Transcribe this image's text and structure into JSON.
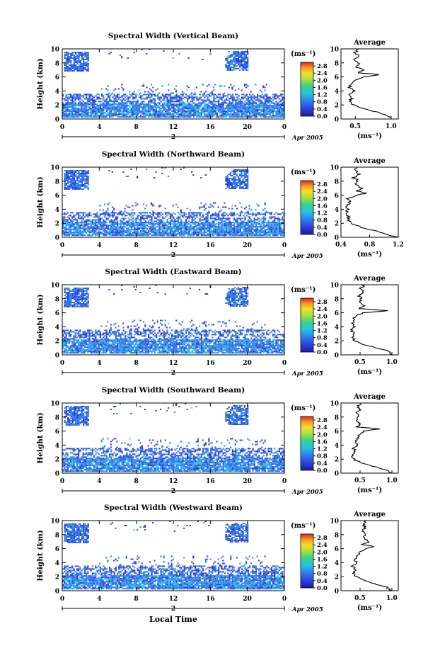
{
  "figure": {
    "xlabel": "Local Time",
    "date_label": "Apr 2005",
    "day_label": "2",
    "ylabel": "Height (km)",
    "cbar_unit": "(ms⁻¹)",
    "avg_title": "Average",
    "avg_unit": "(ms⁻¹)"
  },
  "chart_data": [
    {
      "type": "heatmap",
      "title": "Spectral Width (Vertical Beam)",
      "x_ticks": [
        "0",
        "4",
        "8",
        "12",
        "16",
        "20",
        "0"
      ],
      "y_ticks": [
        "0",
        "2",
        "4",
        "6",
        "8",
        "10"
      ],
      "xlim": [
        0,
        24
      ],
      "ylim": [
        0,
        10
      ],
      "cbar_ticks": [
        "0.0",
        "0.4",
        "0.8",
        "1.2",
        "1.6",
        "2.0",
        "2.4",
        "2.8"
      ],
      "cbar_range": [
        0,
        3.0
      ],
      "average_profile": {
        "x_ticks": [
          "0.5",
          "1.0"
        ],
        "xlim": [
          0.3,
          1.1
        ],
        "height": [
          0,
          0.5,
          1,
          1.5,
          2,
          2.5,
          3,
          3.5,
          4,
          4.5,
          5,
          5.5,
          6,
          6.3,
          6.6,
          7,
          7.5,
          8,
          8.5,
          9,
          9.5,
          10
        ],
        "values": [
          1.0,
          0.95,
          0.8,
          0.6,
          0.48,
          0.42,
          0.45,
          0.4,
          0.48,
          0.42,
          0.45,
          0.5,
          0.6,
          0.85,
          0.55,
          0.6,
          0.5,
          0.55,
          0.5,
          0.55,
          0.5,
          0.55
        ]
      }
    },
    {
      "type": "heatmap",
      "title": "Spectral Width (Northward Beam)",
      "x_ticks": [
        "0",
        "4",
        "8",
        "12",
        "16",
        "20",
        "0"
      ],
      "y_ticks": [
        "0",
        "2",
        "4",
        "6",
        "8",
        "10"
      ],
      "xlim": [
        0,
        24
      ],
      "ylim": [
        0,
        10
      ],
      "cbar_ticks": [
        "0.0",
        "0.4",
        "0.8",
        "1.2",
        "1.6",
        "2.0",
        "2.4",
        "2.8"
      ],
      "cbar_range": [
        0,
        3.0
      ],
      "average_profile": {
        "x_ticks": [
          "0.4",
          "0.8",
          "1.2"
        ],
        "xlim": [
          0.4,
          1.2
        ],
        "height": [
          0,
          0.5,
          1,
          1.5,
          2,
          2.5,
          3,
          3.5,
          4,
          4.5,
          5,
          5.5,
          6,
          6.3,
          6.6,
          7,
          7.5,
          8,
          8.5,
          9,
          9.5,
          10
        ],
        "values": [
          1.2,
          1.0,
          0.85,
          0.65,
          0.55,
          0.5,
          0.5,
          0.47,
          0.5,
          0.48,
          0.52,
          0.5,
          0.6,
          0.75,
          0.62,
          0.68,
          0.6,
          0.65,
          0.58,
          0.65,
          0.6,
          0.62
        ]
      }
    },
    {
      "type": "heatmap",
      "title": "Spectral Width (Eastward Beam)",
      "x_ticks": [
        "0",
        "4",
        "8",
        "12",
        "16",
        "20",
        "0"
      ],
      "y_ticks": [
        "0",
        "2",
        "4",
        "6",
        "8",
        "10"
      ],
      "xlim": [
        0,
        24
      ],
      "ylim": [
        0,
        10
      ],
      "cbar_ticks": [
        "0.0",
        "0.4",
        "0.8",
        "1.2",
        "1.6",
        "2.0",
        "2.4",
        "2.8"
      ],
      "cbar_range": [
        0,
        3.0
      ],
      "average_profile": {
        "x_ticks": [
          "0.5",
          "1.0"
        ],
        "xlim": [
          0.2,
          1.1
        ],
        "height": [
          0,
          0.5,
          1,
          1.5,
          2,
          2.5,
          3,
          3.5,
          4,
          4.5,
          5,
          5.5,
          6,
          6.3,
          6.6,
          7,
          7.5,
          8,
          8.5,
          9,
          9.5,
          10
        ],
        "values": [
          1.0,
          0.95,
          0.75,
          0.55,
          0.42,
          0.38,
          0.4,
          0.36,
          0.42,
          0.38,
          0.4,
          0.42,
          0.55,
          0.95,
          0.5,
          0.55,
          0.48,
          0.52,
          0.48,
          0.55,
          0.5,
          0.58
        ]
      }
    },
    {
      "type": "heatmap",
      "title": "Spectral Width (Southward Beam)",
      "x_ticks": [
        "0",
        "4",
        "8",
        "12",
        "16",
        "20",
        "0"
      ],
      "y_ticks": [
        "0",
        "2",
        "4",
        "6",
        "8",
        "10"
      ],
      "xlim": [
        0,
        24
      ],
      "ylim": [
        0,
        10
      ],
      "cbar_ticks": [
        "0.0",
        "0.4",
        "0.8",
        "1.2",
        "1.6",
        "2.0",
        "2.4",
        "2.8"
      ],
      "cbar_range": [
        0,
        3.0
      ],
      "average_profile": {
        "x_ticks": [
          "0.5",
          "1.0"
        ],
        "xlim": [
          0.2,
          1.1
        ],
        "height": [
          0,
          0.5,
          1,
          1.5,
          2,
          2.5,
          3,
          3.5,
          4,
          4.5,
          5,
          5.5,
          6,
          6.3,
          6.6,
          7,
          7.5,
          8,
          8.5,
          9,
          9.5,
          10
        ],
        "values": [
          1.0,
          0.9,
          0.7,
          0.5,
          0.4,
          0.38,
          0.42,
          0.4,
          0.45,
          0.42,
          0.48,
          0.5,
          0.55,
          0.8,
          0.45,
          0.5,
          0.42,
          0.48,
          0.44,
          0.5,
          0.46,
          0.52
        ]
      }
    },
    {
      "type": "heatmap",
      "title": "Spectral Width (Westward Beam)",
      "x_ticks": [
        "0",
        "4",
        "8",
        "12",
        "16",
        "20",
        "0"
      ],
      "y_ticks": [
        "0",
        "2",
        "4",
        "6",
        "8",
        "10"
      ],
      "xlim": [
        0,
        24
      ],
      "ylim": [
        0,
        10
      ],
      "cbar_ticks": [
        "0.0",
        "0.4",
        "0.8",
        "1.2",
        "1.6",
        "2.0",
        "2.4",
        "2.8"
      ],
      "cbar_range": [
        0,
        3.0
      ],
      "average_profile": {
        "x_ticks": [
          "0.5",
          "1.0"
        ],
        "xlim": [
          0.2,
          1.1
        ],
        "height": [
          0,
          0.5,
          1,
          1.5,
          2,
          2.5,
          3,
          3.5,
          4,
          4.5,
          5,
          5.5,
          6,
          6.3,
          6.6,
          7,
          7.5,
          8,
          8.5,
          9,
          9.5,
          10
        ],
        "values": [
          1.0,
          0.92,
          0.72,
          0.55,
          0.45,
          0.4,
          0.42,
          0.38,
          0.45,
          0.42,
          0.46,
          0.5,
          0.58,
          0.72,
          0.55,
          0.65,
          0.55,
          0.6,
          0.52,
          0.58,
          0.55,
          0.6
        ]
      }
    }
  ]
}
